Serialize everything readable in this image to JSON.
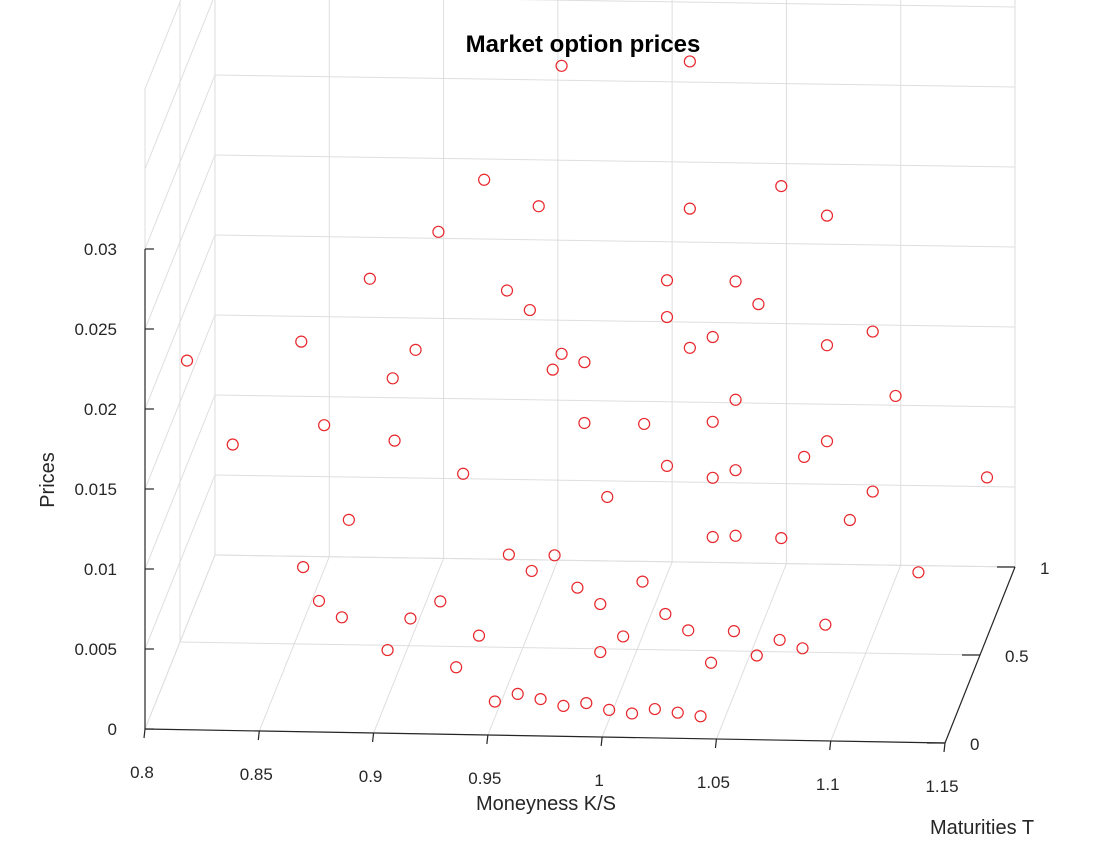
{
  "chart_data": {
    "type": "scatter",
    "title": "Market option prices",
    "xlabel": "Moneyness K/S",
    "ylabel": "Maturities T",
    "zlabel": "Prices",
    "xlim": [
      0.8,
      1.15
    ],
    "ylim": [
      0,
      1
    ],
    "zlim": [
      0,
      0.03
    ],
    "x_ticks": [
      "0.8",
      "0.85",
      "0.9",
      "0.95",
      "1",
      "1.05",
      "1.1",
      "1.15"
    ],
    "y_ticks": [
      "0",
      "0.5",
      "1"
    ],
    "z_ticks": [
      "0",
      "0.005",
      "0.01",
      "0.015",
      "0.02",
      "0.025",
      "0.03"
    ],
    "grid": true,
    "marker": "circle",
    "marker_color": "#e8262b",
    "series": [
      {
        "values": [
          [
            0.8,
            0.6,
            0.0165
          ],
          [
            0.82,
            0.6,
            0.0113
          ],
          [
            0.85,
            0.6,
            0.0178
          ],
          [
            0.86,
            0.6,
            0.0126
          ],
          [
            0.88,
            0.6,
            0.0218
          ],
          [
            0.89,
            0.6,
            0.0156
          ],
          [
            0.9,
            0.6,
            0.0174
          ],
          [
            0.91,
            0.6,
            0.0248
          ],
          [
            0.93,
            0.6,
            0.0281
          ],
          [
            0.94,
            0.6,
            0.0212
          ],
          [
            0.95,
            0.6,
            0.02
          ],
          [
            0.96,
            0.6,
            0.0163
          ],
          [
            0.97,
            0.4,
            0.0375
          ],
          [
            0.96,
            0.4,
            0.0287
          ],
          [
            0.97,
            0.4,
            0.0195
          ],
          [
            0.98,
            0.4,
            0.019
          ],
          [
            0.98,
            0.4,
            0.0152
          ],
          [
            0.99,
            0.4,
            0.0106
          ],
          [
            1.02,
            0.6,
            0.0357
          ],
          [
            1.02,
            0.6,
            0.0265
          ],
          [
            1.01,
            0.6,
            0.022
          ],
          [
            1.01,
            0.6,
            0.0197
          ],
          [
            1.02,
            0.6,
            0.0178
          ],
          [
            1.0,
            0.6,
            0.013
          ],
          [
            1.01,
            0.6,
            0.0104
          ],
          [
            1.04,
            0.6,
            0.022
          ],
          [
            1.03,
            0.6,
            0.0185
          ],
          [
            1.03,
            0.6,
            0.0132
          ],
          [
            1.03,
            0.6,
            0.0097
          ],
          [
            1.03,
            0.6,
            0.006
          ],
          [
            1.06,
            0.6,
            0.028
          ],
          [
            1.05,
            0.6,
            0.0206
          ],
          [
            1.04,
            0.6,
            0.0146
          ],
          [
            1.04,
            0.6,
            0.0102
          ],
          [
            1.04,
            0.6,
            0.0061
          ],
          [
            1.08,
            0.6,
            0.0262
          ],
          [
            1.08,
            0.6,
            0.0181
          ],
          [
            1.07,
            0.6,
            0.0111
          ],
          [
            1.06,
            0.6,
            0.006
          ],
          [
            1.1,
            0.6,
            0.019
          ],
          [
            1.08,
            0.6,
            0.0121
          ],
          [
            1.09,
            0.6,
            0.0072
          ],
          [
            1.11,
            0.6,
            0.015
          ],
          [
            1.1,
            0.6,
            0.009
          ],
          [
            1.15,
            0.6,
            0.01
          ],
          [
            1.12,
            0.6,
            0.004
          ],
          [
            0.86,
            0.3,
            0.007
          ],
          [
            0.88,
            0.3,
            0.01
          ],
          [
            0.9,
            0.3,
            0.015
          ],
          [
            0.92,
            0.3,
            0.005
          ],
          [
            0.93,
            0.3,
            0.013
          ],
          [
            0.95,
            0.3,
            0.008
          ],
          [
            0.87,
            0.2,
            0.006
          ],
          [
            0.88,
            0.2,
            0.005
          ],
          [
            0.9,
            0.2,
            0.003
          ],
          [
            0.91,
            0.2,
            0.005
          ],
          [
            0.93,
            0.2,
            0.002
          ],
          [
            0.94,
            0.2,
            0.004
          ],
          [
            0.97,
            0.3,
            0.008
          ],
          [
            0.96,
            0.3,
            0.007
          ],
          [
            0.98,
            0.3,
            0.006
          ],
          [
            0.99,
            0.3,
            0.005
          ],
          [
            1.0,
            0.3,
            0.003
          ],
          [
            0.99,
            0.3,
            0.002
          ],
          [
            0.95,
            0.1,
            0.001
          ],
          [
            0.96,
            0.1,
            0.0015
          ],
          [
            0.97,
            0.1,
            0.0012
          ],
          [
            0.98,
            0.1,
            0.0008
          ],
          [
            0.99,
            0.1,
            0.001
          ],
          [
            1.0,
            0.1,
            0.0006
          ],
          [
            1.01,
            0.1,
            0.0004
          ],
          [
            1.02,
            0.1,
            0.0007
          ],
          [
            1.03,
            0.1,
            0.0005
          ],
          [
            1.04,
            0.1,
            0.0003
          ],
          [
            1.01,
            0.25,
            0.007
          ],
          [
            1.02,
            0.25,
            0.005
          ],
          [
            1.03,
            0.25,
            0.004
          ],
          [
            1.04,
            0.25,
            0.002
          ],
          [
            1.05,
            0.25,
            0.004
          ],
          [
            1.06,
            0.25,
            0.0025
          ],
          [
            1.07,
            0.25,
            0.0035
          ],
          [
            1.08,
            0.25,
            0.003
          ],
          [
            1.09,
            0.25,
            0.0045
          ]
        ]
      }
    ]
  }
}
